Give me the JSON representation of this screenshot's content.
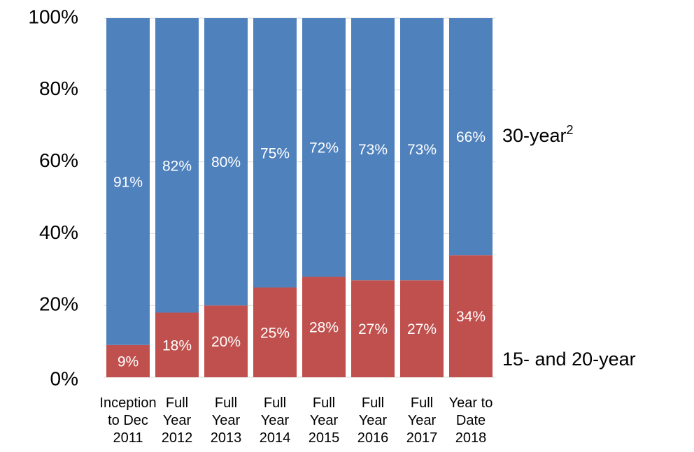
{
  "chart_data": {
    "type": "stacked_bar",
    "categories": [
      "Inception\nto Dec\n2011",
      "Full\nYear\n2012",
      "Full\nYear\n2013",
      "Full\nYear\n2014",
      "Full\nYear\n2015",
      "Full\nYear\n2016",
      "Full\nYear\n2017",
      "Year to\nDate\n2018"
    ],
    "series": [
      {
        "name": "15- and 20-year",
        "color": "#c0504d",
        "values": [
          9,
          18,
          20,
          25,
          28,
          27,
          27,
          34
        ],
        "value_labels": [
          "9%",
          "18%",
          "20%",
          "25%",
          "28%",
          "27%",
          "27%",
          "34%"
        ]
      },
      {
        "name": "30-year",
        "footnote": "2",
        "color": "#4f81bd",
        "values": [
          91,
          82,
          80,
          75,
          72,
          73,
          73,
          66
        ],
        "value_labels": [
          "91%",
          "82%",
          "80%",
          "75%",
          "72%",
          "73%",
          "73%",
          "66%"
        ]
      }
    ],
    "ylim": [
      0,
      100
    ],
    "yticks": [
      {
        "value": 0,
        "label": "0%"
      },
      {
        "value": 20,
        "label": "20%"
      },
      {
        "value": 40,
        "label": "40%"
      },
      {
        "value": 60,
        "label": "60%"
      },
      {
        "value": 80,
        "label": "80%"
      },
      {
        "value": 100,
        "label": "100%"
      }
    ],
    "grid": true
  }
}
